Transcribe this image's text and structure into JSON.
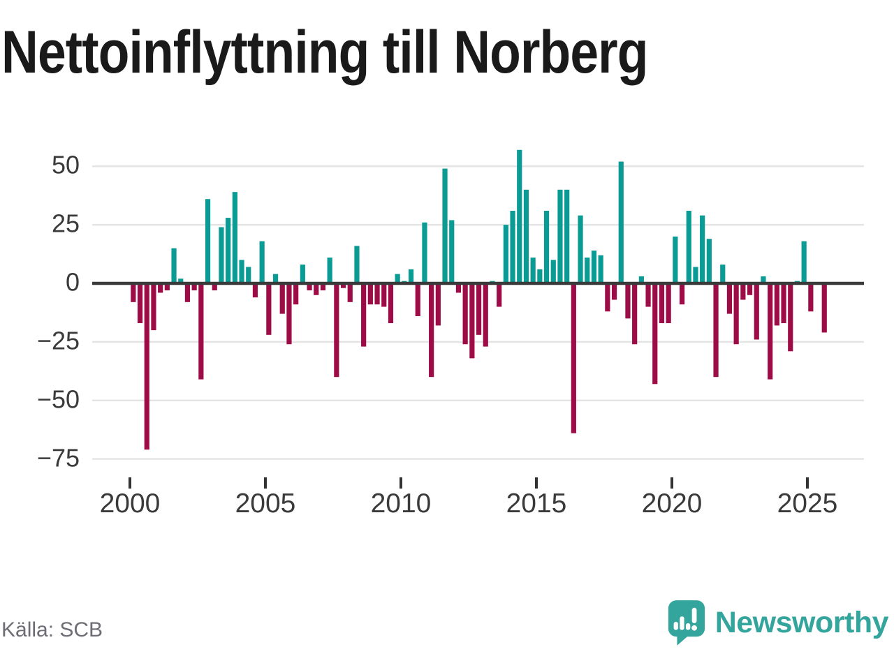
{
  "title": "Nettoinflyttning till Norberg",
  "source": "Källa: SCB",
  "brand": {
    "name": "Newsworthy"
  },
  "colors": {
    "positive": "#0a9b94",
    "negative": "#9d0c46",
    "brand": "#34a59d",
    "grid": "#e4e4e4",
    "axis": "#3a3a3a",
    "tick": "#333333",
    "label": "#3a3a3a",
    "title": "#1a1a1a",
    "source_text": "#6d6d75",
    "background": "#ffffff"
  },
  "chart_data": {
    "type": "bar",
    "title": "Nettoinflyttning till Norberg",
    "x_unit": "quarter",
    "start_year": 2000,
    "start_quarter": 1,
    "values": [
      -8,
      -17,
      -71,
      -20,
      -4,
      -3,
      15,
      2,
      -8,
      -3,
      -41,
      36,
      -3,
      24,
      28,
      39,
      10,
      7,
      -6,
      18,
      -22,
      4,
      -13,
      -26,
      -9,
      8,
      -3,
      -5,
      -3,
      11,
      -40,
      -2,
      -8,
      16,
      -27,
      -9,
      -9,
      -10,
      -17,
      4,
      1,
      6,
      -14,
      26,
      -40,
      -18,
      49,
      27,
      -4,
      -26,
      -32,
      -22,
      -27,
      1,
      -10,
      25,
      31,
      57,
      40,
      11,
      6,
      31,
      10,
      40,
      40,
      -64,
      29,
      11,
      14,
      12,
      -12,
      -7,
      52,
      -15,
      -26,
      3,
      -10,
      -43,
      -17,
      -17,
      20,
      -9,
      31,
      7,
      29,
      19,
      -40,
      8,
      -13,
      -26,
      -7,
      -5,
      -24,
      3,
      -41,
      -18,
      -17,
      -29,
      1,
      18,
      -12,
      0,
      -21
    ],
    "yticks": [
      {
        "value": 50,
        "label": "50"
      },
      {
        "value": 25,
        "label": "25"
      },
      {
        "value": 0,
        "label": "0"
      },
      {
        "value": -25,
        "label": "−25"
      },
      {
        "value": -50,
        "label": "−50"
      },
      {
        "value": -75,
        "label": "−75"
      }
    ],
    "xticks": [
      {
        "value": 2000,
        "label": "2000"
      },
      {
        "value": 2005,
        "label": "2005"
      },
      {
        "value": 2010,
        "label": "2010"
      },
      {
        "value": 2015,
        "label": "2015"
      },
      {
        "value": 2020,
        "label": "2020"
      },
      {
        "value": 2025,
        "label": "2025"
      }
    ],
    "ylim": [
      -75,
      57
    ],
    "grid": true,
    "legend": false
  }
}
